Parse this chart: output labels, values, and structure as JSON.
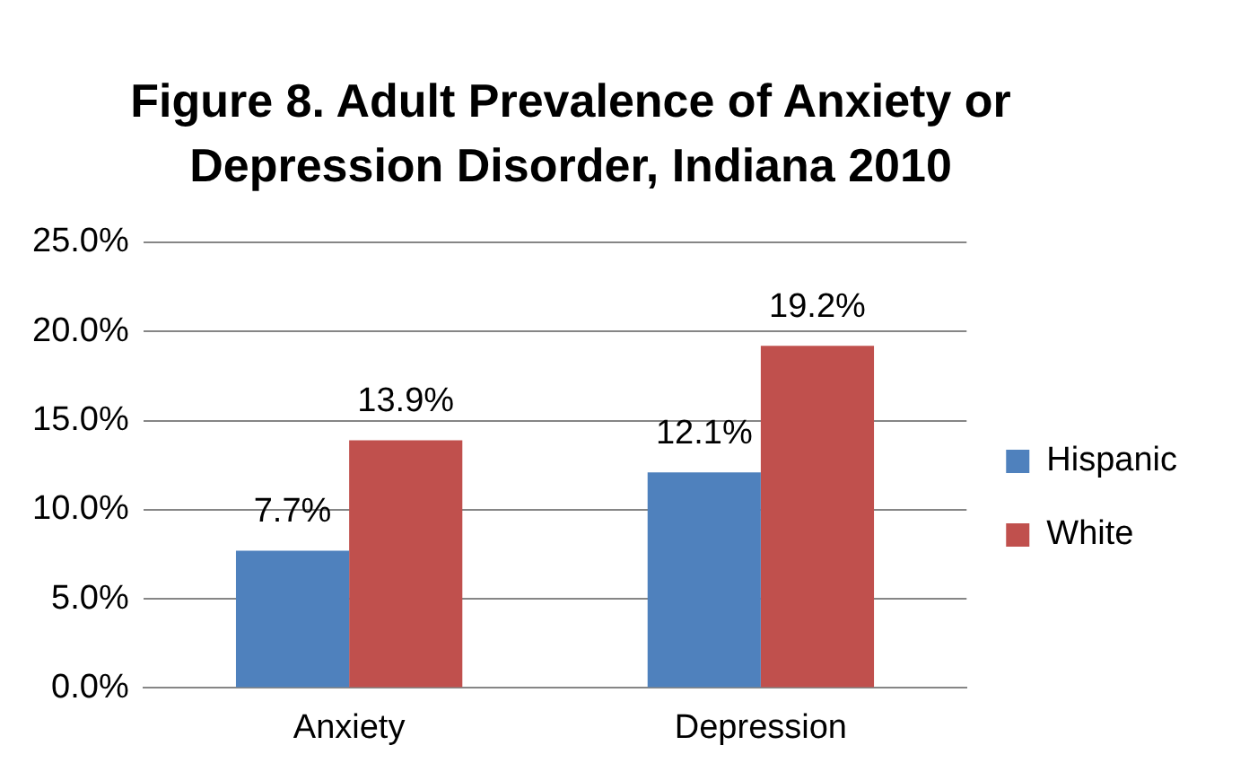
{
  "chart_data": {
    "type": "bar",
    "title": "Figure 8.  Adult Prevalence of Anxiety or Depression Disorder, Indiana 2010",
    "categories": [
      "Anxiety",
      "Depression"
    ],
    "series": [
      {
        "name": "Hispanic",
        "color": "#4f81bd",
        "values": [
          7.7,
          12.1
        ],
        "value_labels": [
          "7.7%",
          "12.1%"
        ]
      },
      {
        "name": "White",
        "color": "#c0504d",
        "values": [
          13.9,
          19.2
        ],
        "value_labels": [
          "13.9%",
          "19.2%"
        ]
      }
    ],
    "ylim": [
      0,
      25
    ],
    "yticks": [
      {
        "value": 0,
        "label": "0.0%"
      },
      {
        "value": 5,
        "label": "5.0%"
      },
      {
        "value": 10,
        "label": "10.0%"
      },
      {
        "value": 15,
        "label": "15.0%"
      },
      {
        "value": 20,
        "label": "20.0%"
      },
      {
        "value": 25,
        "label": "25.0%"
      }
    ],
    "grid": "y",
    "legend": "right"
  }
}
